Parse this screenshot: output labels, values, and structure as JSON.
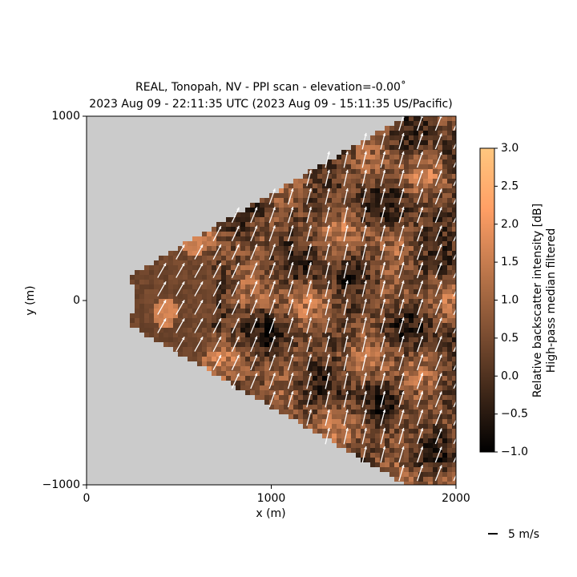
{
  "chart_data": {
    "type": "ppi",
    "title": "REAL, Tonopah, NV - PPI scan - elevation=-0.00˚",
    "subtitle": "2023 Aug 09 - 22:11:35 UTC (2023 Aug 09 - 15:11:35 US/Pacific)",
    "x_label": "x (m)",
    "y_label": "y (m)",
    "xlim": [
      0,
      2000
    ],
    "ylim": [
      -1000,
      1000
    ],
    "xticks": [
      0,
      1000,
      2000
    ],
    "yticks": [
      {
        "value": -1000,
        "label": "−1000"
      },
      0,
      1000
    ],
    "colorbar": {
      "label": [
        "Relative backscatter intensity [dB]",
        "High-pass median filtered"
      ],
      "clim": [
        -1,
        3
      ],
      "colormap": "copper",
      "ticks": [
        {
          "value": -1,
          "label": "−1.0"
        },
        {
          "value": -0.5,
          "label": "−0.5"
        },
        {
          "value": 0,
          "label": "0.0"
        },
        {
          "value": 0.5,
          "label": "0.5"
        },
        {
          "value": 1,
          "label": "1.0"
        },
        {
          "value": 1.5,
          "label": "1.5"
        },
        {
          "value": 2,
          "label": "2.0"
        },
        {
          "value": 2.5,
          "label": "2.5"
        },
        {
          "value": 3,
          "label": "3.0"
        }
      ]
    },
    "quiver_key": {
      "value": 5,
      "label": "5 m/s"
    }
  }
}
